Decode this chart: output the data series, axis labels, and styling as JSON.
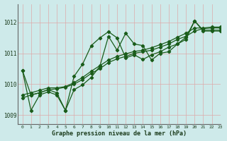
{
  "title": "Graphe pression niveau de la mer (hPa)",
  "bg_color": "#ceeaea",
  "grid_color": "#ddaaaa",
  "line_color": "#1a5c1a",
  "xlim": [
    -0.5,
    23
  ],
  "ylim": [
    1008.7,
    1012.6
  ],
  "xticks": [
    0,
    1,
    2,
    3,
    4,
    5,
    6,
    7,
    8,
    9,
    10,
    11,
    12,
    13,
    14,
    15,
    16,
    17,
    18,
    19,
    20,
    21,
    22,
    23
  ],
  "yticks": [
    1009,
    1010,
    1011,
    1012
  ],
  "series": [
    {
      "x": [
        0,
        1,
        2,
        3,
        4,
        5,
        6,
        7,
        8,
        9,
        10,
        11,
        12,
        13,
        14,
        15,
        16,
        17,
        18,
        19,
        20,
        21,
        22,
        23
      ],
      "y": [
        1010.45,
        1009.15,
        1009.65,
        1009.75,
        1009.65,
        1009.15,
        1010.25,
        1010.65,
        1011.25,
        1011.5,
        1011.7,
        1011.5,
        1010.85,
        1010.95,
        1010.8,
        1010.95,
        1011.05,
        1011.2,
        1011.3,
        1011.45,
        1012.05,
        1011.75,
        1011.75,
        1011.75
      ]
    },
    {
      "x": [
        0,
        1,
        2,
        3,
        4,
        5,
        6,
        7,
        8,
        9,
        10,
        11,
        12,
        13,
        14,
        15,
        16,
        17,
        18,
        19,
        20,
        21,
        22,
        23
      ],
      "y": [
        1009.55,
        1009.65,
        1009.72,
        1009.82,
        1009.85,
        1009.9,
        1010.0,
        1010.15,
        1010.35,
        1010.5,
        1010.7,
        1010.82,
        1010.9,
        1011.0,
        1011.05,
        1011.1,
        1011.2,
        1011.3,
        1011.45,
        1011.55,
        1011.72,
        1011.8,
        1011.82,
        1011.82
      ]
    },
    {
      "x": [
        0,
        1,
        2,
        3,
        4,
        5,
        6,
        7,
        8,
        9,
        10,
        11,
        12,
        13,
        14,
        15,
        16,
        17,
        18,
        19,
        20,
        21,
        22,
        23
      ],
      "y": [
        1009.65,
        1009.72,
        1009.8,
        1009.88,
        1009.88,
        1009.92,
        1010.05,
        1010.22,
        1010.42,
        1010.6,
        1010.78,
        1010.9,
        1010.98,
        1011.06,
        1011.1,
        1011.18,
        1011.28,
        1011.38,
        1011.52,
        1011.65,
        1011.82,
        1011.82,
        1011.85,
        1011.85
      ]
    },
    {
      "x": [
        0,
        1,
        2,
        3,
        4,
        5,
        6,
        7,
        8,
        9,
        10,
        11,
        12,
        13,
        14,
        15,
        16,
        17,
        18,
        19,
        20,
        21,
        22,
        23
      ],
      "y": [
        1010.45,
        1009.65,
        1009.72,
        1009.82,
        1009.72,
        1009.15,
        1009.82,
        1009.98,
        1010.22,
        1010.58,
        1011.55,
        1011.1,
        1011.65,
        1011.3,
        1011.25,
        1010.78,
        1011.0,
        1011.05,
        1011.3,
        1011.52,
        1012.05,
        1011.72,
        1011.72,
        1011.72
      ]
    }
  ]
}
